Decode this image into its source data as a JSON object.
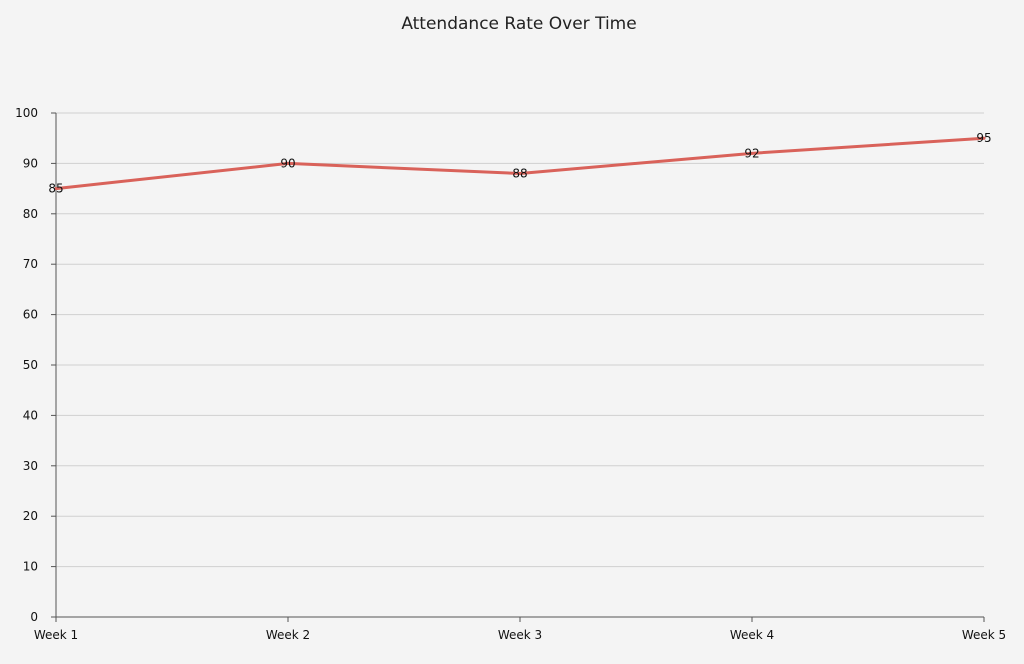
{
  "chart_data": {
    "type": "line",
    "title": "Attendance Rate Over Time",
    "xlabel": "",
    "ylabel": "",
    "categories": [
      "Week 1",
      "Week 2",
      "Week 3",
      "Week 4",
      "Week 5"
    ],
    "series": [
      {
        "values": [
          85,
          90,
          88,
          92,
          95
        ]
      }
    ],
    "ylim": [
      0,
      100
    ],
    "yticks": [
      0,
      10,
      20,
      30,
      40,
      50,
      60,
      70,
      80,
      90,
      100
    ],
    "grid": true,
    "data_labels": true,
    "line_color": "#d9625a",
    "background_color": "#f4f4f4"
  }
}
